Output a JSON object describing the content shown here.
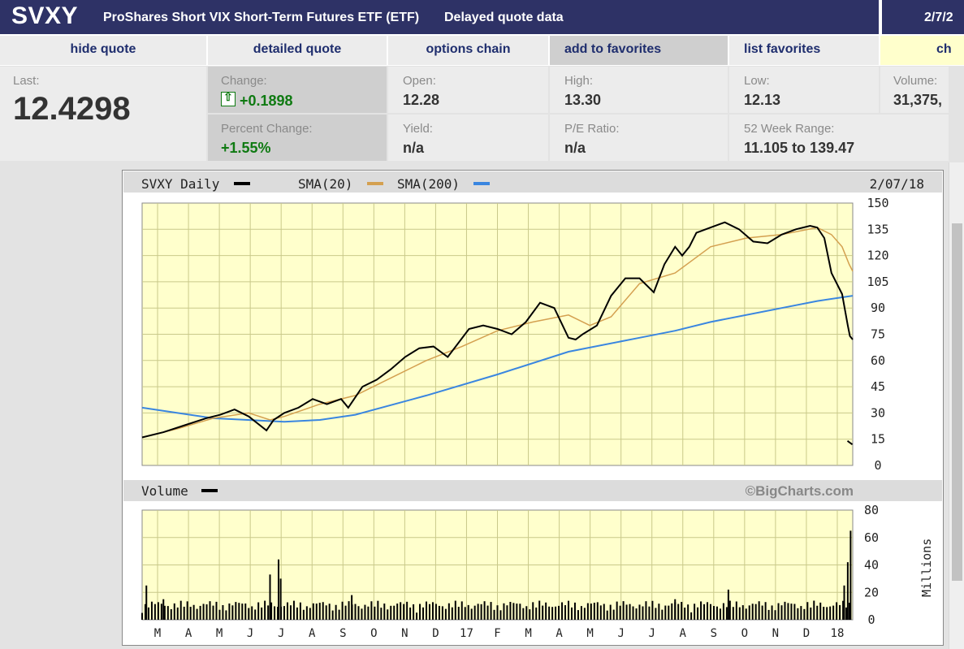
{
  "header": {
    "symbol": "SVXY",
    "name": "ProShares Short VIX Short-Term Futures ETF (ETF)",
    "delayed": "Delayed quote data",
    "date": "2/7/2"
  },
  "nav": {
    "hide_quote": "hide quote",
    "detailed_quote": "detailed quote",
    "options_chain": "options chain",
    "add_to_favorites": "add to favorites",
    "list_favorites": "list favorites",
    "chart": "ch"
  },
  "quote": {
    "last_label": "Last:",
    "last_value": "12.4298",
    "change_label": "Change:",
    "change_value": "+0.1898",
    "pct_change_label": "Percent Change:",
    "pct_change_value": "+1.55%",
    "open_label": "Open:",
    "open_value": "12.28",
    "yield_label": "Yield:",
    "yield_value": "n/a",
    "high_label": "High:",
    "high_value": "13.30",
    "pe_label": "P/E Ratio:",
    "pe_value": "n/a",
    "low_label": "Low:",
    "low_value": "12.13",
    "range_label": "52 Week Range:",
    "range_value": "11.105 to 139.47",
    "volume_label": "Volume:",
    "volume_value": "31,375,",
    "positive_color": "#0f7a12"
  },
  "chart": {
    "header_symbol": "SVXY Daily",
    "legend_sma20": "SMA(20)",
    "legend_sma200": "SMA(200)",
    "header_date": "2/07/18",
    "volume_label": "Volume",
    "copyright": "©BigCharts.com",
    "volume_unit": "Millions"
  },
  "chart_data": {
    "type": "line",
    "title": "SVXY Daily",
    "date": "2/07/18",
    "ylim": [
      0,
      150
    ],
    "yticks": [
      150,
      135,
      120,
      105,
      90,
      75,
      60,
      45,
      30,
      15,
      0
    ],
    "x_months": [
      "M",
      "A",
      "M",
      "J",
      "J",
      "A",
      "S",
      "O",
      "N",
      "D",
      "17",
      "F",
      "M",
      "A",
      "M",
      "J",
      "J",
      "A",
      "S",
      "O",
      "N",
      "D",
      "18"
    ],
    "grid": true,
    "colors": {
      "price": "#000000",
      "sma20": "#d4a050",
      "sma200": "#3a86e0"
    },
    "series": [
      {
        "name": "SVXY Daily",
        "x": [
          0,
          3,
          6,
          9,
          11,
          13,
          15,
          17.5,
          18.5,
          20,
          22,
          24,
          26,
          28,
          29,
          31,
          33,
          35,
          37,
          39,
          41,
          43,
          46,
          48,
          50,
          52,
          54,
          56,
          58,
          60,
          61,
          62,
          64,
          66,
          68,
          70,
          72,
          73.5,
          75,
          76,
          77,
          78,
          80,
          82,
          84,
          86,
          88,
          90,
          92,
          94,
          95,
          96,
          97,
          98.5,
          99.3,
          99.6,
          100
        ],
        "values": [
          16,
          19,
          23,
          27,
          29,
          32,
          28,
          20,
          26,
          30,
          33,
          38,
          35,
          38,
          33,
          45,
          49,
          55,
          62,
          67,
          68,
          62,
          78,
          80,
          78,
          75,
          82,
          93,
          90,
          73,
          72,
          75,
          80,
          97,
          107,
          107,
          99,
          115,
          125,
          120,
          125,
          133,
          136,
          139,
          135,
          128,
          127,
          132,
          135,
          137,
          136,
          130,
          110,
          98,
          80,
          74,
          72
        ]
      },
      {
        "name": "SMA(20)",
        "x": [
          0,
          5,
          10,
          15,
          18,
          20,
          25,
          30,
          35,
          40,
          45,
          50,
          55,
          60,
          63,
          66,
          70,
          75,
          80,
          85,
          90,
          95,
          97,
          98.5,
          99.5,
          100
        ],
        "values": [
          16,
          21,
          27,
          30,
          26,
          28,
          35,
          40,
          50,
          60,
          68,
          77,
          82,
          86,
          80,
          85,
          104,
          110,
          125,
          130,
          132,
          136,
          132,
          125,
          115,
          111
        ]
      },
      {
        "name": "SMA(200)",
        "x": [
          0,
          10,
          20,
          25,
          30,
          40,
          50,
          60,
          70,
          75,
          80,
          90,
          95,
          100
        ],
        "values": [
          33,
          27,
          25,
          26,
          29,
          40,
          52,
          65,
          73,
          77,
          82,
          90,
          94,
          97
        ]
      }
    ],
    "volume": {
      "ylabel": "Millions",
      "ylim": [
        0,
        80
      ],
      "yticks": [
        80,
        60,
        40,
        20,
        0
      ],
      "spikes": [
        {
          "x": 0.6,
          "value": 25
        },
        {
          "x": 3.0,
          "value": 15
        },
        {
          "x": 18.0,
          "value": 33
        },
        {
          "x": 19.2,
          "value": 44
        },
        {
          "x": 19.5,
          "value": 30
        },
        {
          "x": 29.5,
          "value": 18
        },
        {
          "x": 75.0,
          "value": 15
        },
        {
          "x": 82.5,
          "value": 22
        },
        {
          "x": 98.8,
          "value": 25
        },
        {
          "x": 99.3,
          "value": 42
        },
        {
          "x": 99.7,
          "value": 65
        }
      ]
    }
  }
}
